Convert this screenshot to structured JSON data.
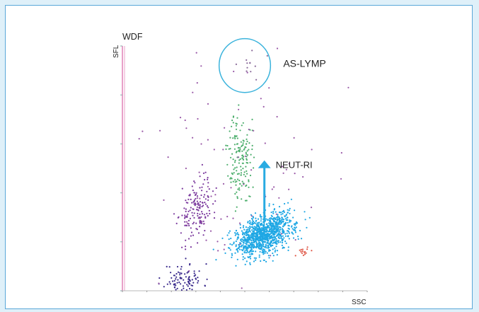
{
  "chart_data": {
    "type": "scatter",
    "title": "WDF",
    "xlabel": "SSC",
    "ylabel": "SFL",
    "xlim": [
      0,
      100
    ],
    "ylim": [
      0,
      100
    ],
    "grid": false,
    "series": [
      {
        "color": "#3a2a8c",
        "cluster": {
          "cx": 25,
          "cy": 5,
          "sx": 4,
          "sy": 3,
          "n": 90,
          "seed": 11
        }
      },
      {
        "color": "#7b3a9e",
        "cluster": {
          "cx": 30,
          "cy": 33,
          "sx": 3.2,
          "sy": 6,
          "n": 160,
          "seed": 23
        }
      },
      {
        "color": "#4cae6c",
        "cluster": {
          "cx": 48,
          "cy": 54,
          "sx": 2.4,
          "sy": 9,
          "n": 160,
          "seed": 37
        }
      },
      {
        "color": "#1ea7e4",
        "cluster": {
          "cx": 58,
          "cy": 23,
          "sx": 6,
          "sy": 4,
          "n": 1100,
          "seed": 53
        }
      },
      {
        "color": "#e05a4a",
        "cluster": {
          "cx": 75,
          "cy": 16,
          "sx": 2,
          "sy": 0.8,
          "n": 16,
          "seed": 71
        }
      },
      {
        "color": "#9a5aa8",
        "cluster": {
          "cx": 50,
          "cy": 50,
          "sx": 20,
          "sy": 28,
          "n": 90,
          "seed": 89
        }
      },
      {
        "color": "#8a6a9a",
        "cluster": {
          "cx": 50,
          "cy": 92,
          "sx": 3,
          "sy": 3,
          "n": 12,
          "seed": 97
        }
      }
    ],
    "annotations": [
      {
        "text": "AS-LYMP",
        "type": "ellipse",
        "cx": 50,
        "cy": 92,
        "rx": 10.5,
        "ry": 11
      },
      {
        "text": "NEUT-RI",
        "type": "arrow",
        "x": 58,
        "y_from": 28,
        "y_to": 53
      }
    ],
    "colors": {
      "arrow": "#29abe2",
      "ellipse": "#3bb3dc",
      "y_axis": "#e8a0c8"
    }
  }
}
